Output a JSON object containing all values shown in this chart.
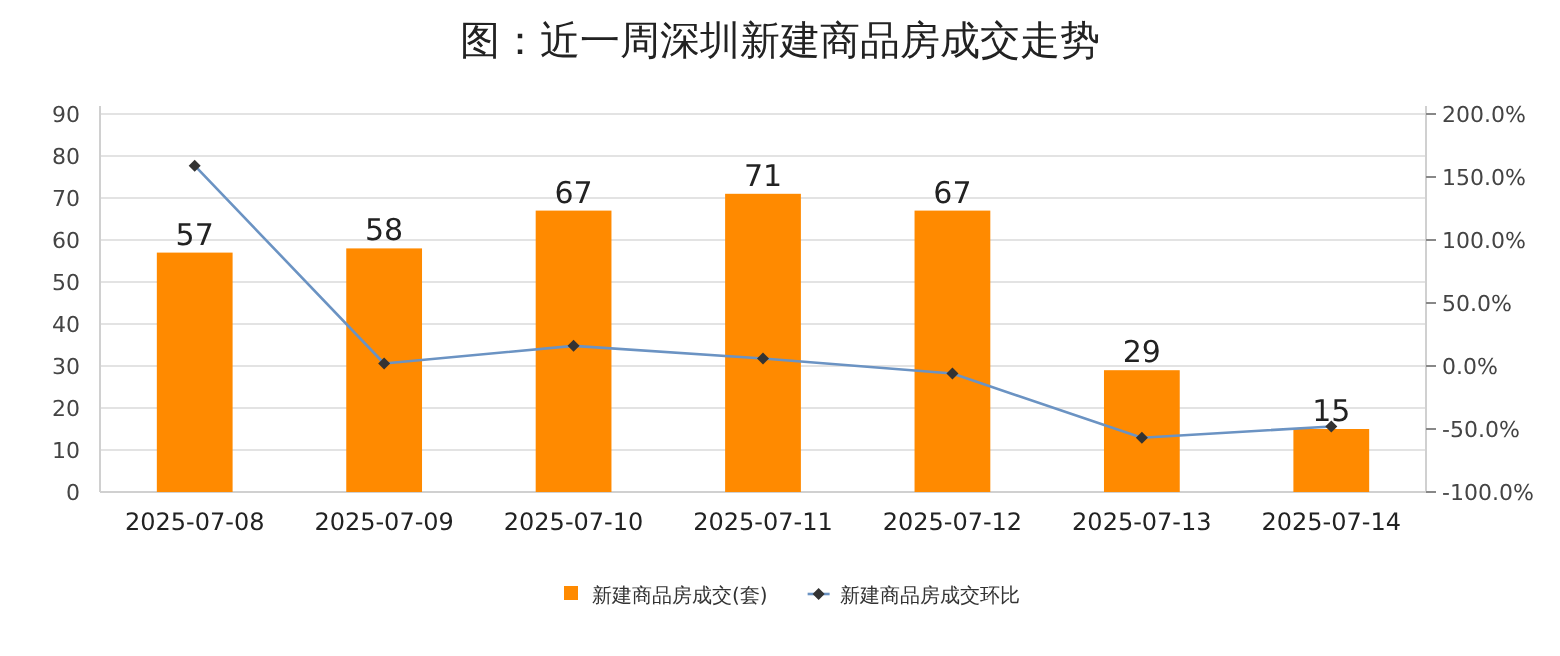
{
  "chart_data": {
    "type": "bar",
    "title": "图：近一周深圳新建商品房成交走势",
    "categories": [
      "2025-07-08",
      "2025-07-09",
      "2025-07-10",
      "2025-07-11",
      "2025-07-12",
      "2025-07-13",
      "2025-07-14"
    ],
    "series": [
      {
        "name": "新建商品房成交(套)",
        "color": "#ff8a00",
        "values": [
          57,
          58,
          67,
          71,
          67,
          29,
          15
        ],
        "value_labels": [
          "57",
          "58",
          "67",
          "71",
          "67",
          "29",
          "15"
        ]
      },
      {
        "name": "新建商品房成交环比",
        "type": "line",
        "axis": "y2",
        "color": "#6b93c3",
        "marker": "diamond",
        "values": [
          159,
          2,
          16,
          6,
          -6,
          -57,
          -48
        ]
      }
    ],
    "ylim": [
      0,
      90
    ],
    "yticks": [
      0,
      10,
      20,
      30,
      40,
      50,
      60,
      70,
      80,
      90
    ],
    "y2lim": [
      -100,
      200
    ],
    "y2ticks": [
      {
        "value": -100,
        "label": "-100.0%"
      },
      {
        "value": -50,
        "label": "-50.0%"
      },
      {
        "value": 0,
        "label": "0.0%"
      },
      {
        "value": 50,
        "label": "50.0%"
      },
      {
        "value": 100,
        "label": "100.0%"
      },
      {
        "value": 150,
        "label": "150.0%"
      },
      {
        "value": 200,
        "label": "200.0%"
      }
    ],
    "grid": "y",
    "legend": "bottom"
  }
}
